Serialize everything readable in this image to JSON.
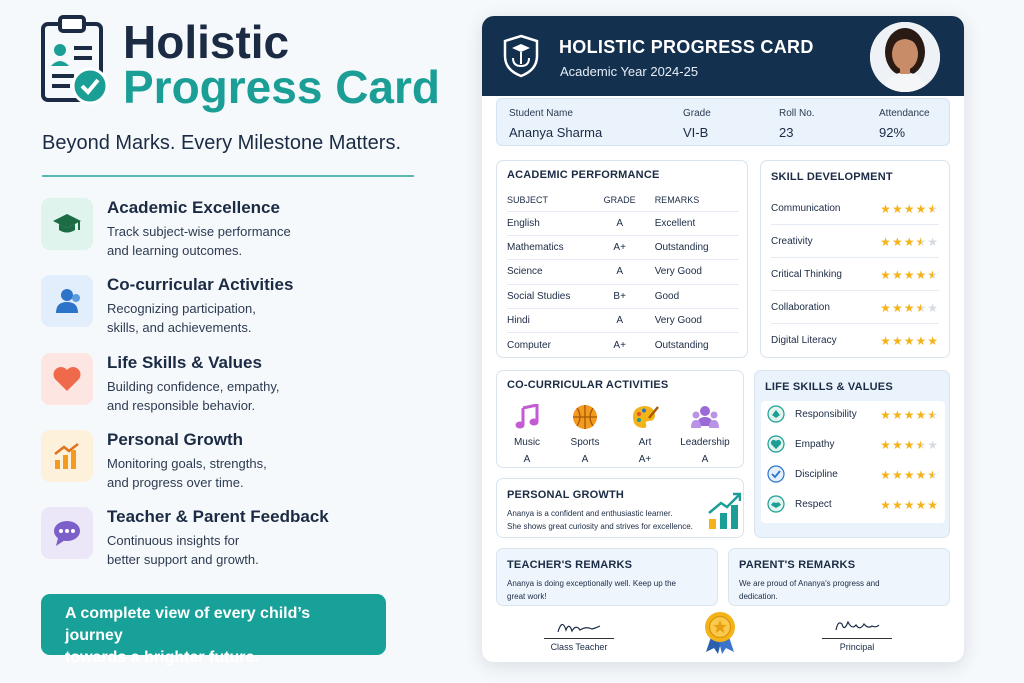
{
  "hero": {
    "title_line1": "Holistic",
    "title_line2": "Progress Card",
    "tagline": "Beyond Marks. Every Milestone Matters."
  },
  "features": [
    {
      "icon": "graduation-cap-icon",
      "title": "Academic Excellence",
      "desc_l1": "Track subject-wise performance",
      "desc_l2": "and learning outcomes.",
      "bg": "#dff4ec"
    },
    {
      "icon": "users-icon",
      "title": "Co-curricular Activities",
      "desc_l1": "Recognizing participation,",
      "desc_l2": "skills, and achievements.",
      "bg": "#e2eefb"
    },
    {
      "icon": "heart-icon",
      "title": "Life Skills & Values",
      "desc_l1": "Building confidence, empathy,",
      "desc_l2": "and responsible behavior.",
      "bg": "#fde6e1"
    },
    {
      "icon": "growth-chart-icon",
      "title": "Personal Growth",
      "desc_l1": "Monitoring goals, strengths,",
      "desc_l2": "and progress over time.",
      "bg": "#fef1dc"
    },
    {
      "icon": "chat-bubble-icon",
      "title": "Teacher & Parent Feedback",
      "desc_l1": "Continuous insights for",
      "desc_l2": "better support and growth.",
      "bg": "#ebe6f8"
    }
  ],
  "cta": {
    "line1": "A complete view of every child’s journey",
    "line2": "towards a brighter future."
  },
  "card": {
    "title": "HOLISTIC PROGRESS CARD",
    "year": "Academic Year 2024-25",
    "student": {
      "name_label": "Student Name",
      "name": "Ananya Sharma",
      "grade_label": "Grade",
      "grade": "VI-B",
      "roll_label": "Roll No.",
      "roll": "23",
      "att_label": "Attendance",
      "attendance": "92%"
    },
    "academic": {
      "title": "ACADEMIC PERFORMANCE",
      "headers": [
        "SUBJECT",
        "GRADE",
        "REMARKS"
      ],
      "rows": [
        [
          "English",
          "A",
          "Excellent"
        ],
        [
          "Mathematics",
          "A+",
          "Outstanding"
        ],
        [
          "Science",
          "A",
          "Very Good"
        ],
        [
          "Social Studies",
          "B+",
          "Good"
        ],
        [
          "Hindi",
          "A",
          "Very Good"
        ],
        [
          "Computer",
          "A+",
          "Outstanding"
        ]
      ]
    },
    "skills": {
      "title": "SKILL DEVELOPMENT",
      "items": [
        {
          "name": "Communication",
          "rating": 4.5
        },
        {
          "name": "Creativity",
          "rating": 3.5
        },
        {
          "name": "Critical Thinking",
          "rating": 4.5
        },
        {
          "name": "Collaboration",
          "rating": 3.5
        },
        {
          "name": "Digital Literacy",
          "rating": 5
        }
      ]
    },
    "cocurricular": {
      "title": "CO-CURRICULAR ACTIVITIES",
      "items": [
        {
          "icon": "music-note-icon",
          "name": "Music",
          "grade": "A"
        },
        {
          "icon": "basketball-icon",
          "name": "Sports",
          "grade": "A"
        },
        {
          "icon": "palette-icon",
          "name": "Art",
          "grade": "A+"
        },
        {
          "icon": "leadership-icon",
          "name": "Leadership",
          "grade": "A"
        }
      ]
    },
    "life": {
      "title": "LIFE SKILLS & VALUES",
      "items": [
        {
          "icon": "responsibility-icon",
          "name": "Responsibility",
          "rating": 4.5
        },
        {
          "icon": "empathy-icon",
          "name": "Empathy",
          "rating": 3.5
        },
        {
          "icon": "discipline-icon",
          "name": "Discipline",
          "rating": 4.5
        },
        {
          "icon": "respect-icon",
          "name": "Respect",
          "rating": 5
        }
      ]
    },
    "growth": {
      "title": "PERSONAL GROWTH",
      "line1": "Ananya is a confident and enthusiastic learner.",
      "line2": "She shows great curiosity and strives for excellence."
    },
    "teacher": {
      "title": "TEACHER'S REMARKS",
      "line1": "Ananya is doing exceptionally well. Keep up the",
      "line2": "great work!"
    },
    "parent": {
      "title": "PARENT'S REMARKS",
      "line1": "We are proud of Ananya's progress and",
      "line2": "dedication."
    },
    "signatures": {
      "left": "Class Teacher",
      "right": "Principal"
    }
  }
}
